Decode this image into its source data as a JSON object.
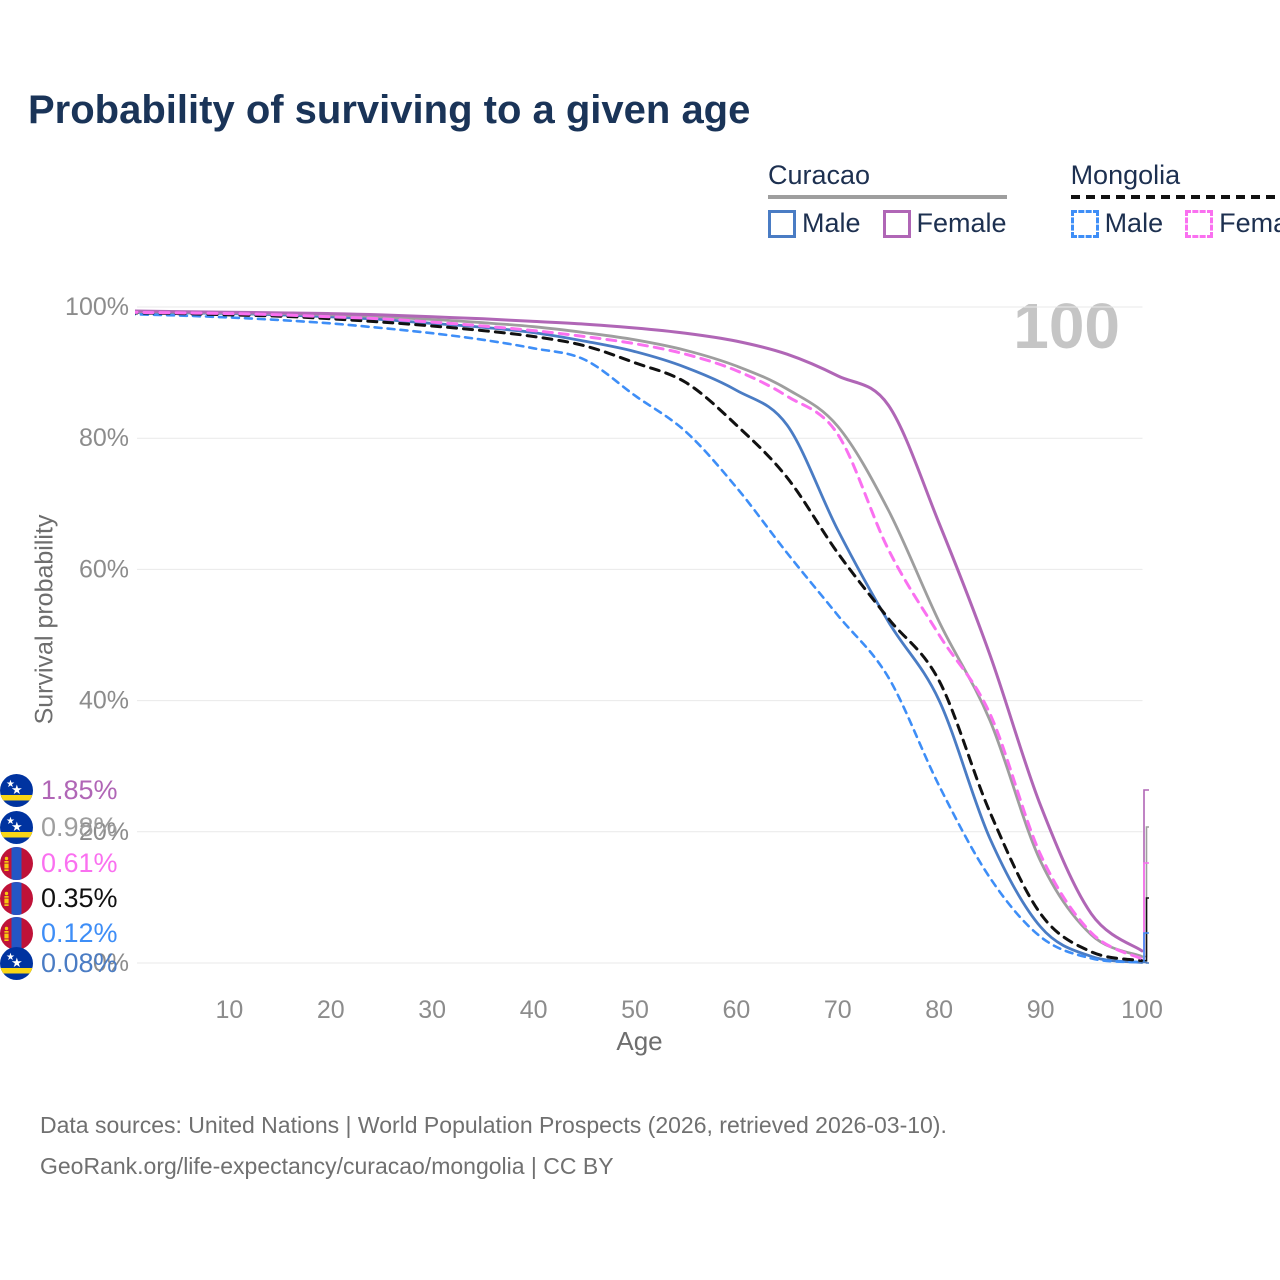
{
  "title": "Probability of surviving to a given age",
  "watermark_age": "100",
  "legend": {
    "groups": [
      {
        "label": "Curacao",
        "line_style": "solid",
        "underline_color": "#9e9e9e",
        "items": [
          {
            "label": "Male",
            "color": "#4a7cc4",
            "dashed": false
          },
          {
            "label": "Female",
            "color": "#b066b6",
            "dashed": false
          }
        ]
      },
      {
        "label": "Mongolia",
        "line_style": "dashed",
        "underline_color": "#111111",
        "items": [
          {
            "label": "Male",
            "color": "#3e8ef7",
            "dashed": true
          },
          {
            "label": "Female",
            "color": "#fa70f0",
            "dashed": true
          }
        ]
      }
    ]
  },
  "axes": {
    "x_label": "Age",
    "y_label": "Survival probability",
    "x_ticks": [
      "10",
      "20",
      "30",
      "40",
      "50",
      "60",
      "70",
      "80",
      "90",
      "100"
    ],
    "y_ticks": [
      "0%",
      "20%",
      "40%",
      "60%",
      "80%",
      "100%"
    ]
  },
  "chart_data": {
    "type": "line",
    "title": "Probability of surviving to a given age",
    "xlabel": "Age",
    "ylabel": "Survival probability",
    "xlim": [
      0,
      100
    ],
    "ylim": [
      0,
      100
    ],
    "grid": true,
    "legend_position": "top-right",
    "x": [
      0,
      5,
      10,
      15,
      20,
      25,
      30,
      35,
      40,
      45,
      50,
      55,
      60,
      65,
      70,
      75,
      80,
      85,
      90,
      95,
      100
    ],
    "series": [
      {
        "name": "Curacao Male",
        "country": "Curacao",
        "sex": "Male",
        "color": "#4a7cc4",
        "dash": null,
        "width": 2.8,
        "values": [
          99.2,
          99.1,
          99.0,
          98.8,
          98.5,
          98.1,
          97.5,
          96.9,
          96.1,
          94.8,
          93.2,
          90.8,
          87.3,
          82.0,
          66.0,
          52.0,
          40.0,
          19.0,
          5.5,
          1.0,
          0.08
        ]
      },
      {
        "name": "Curacao",
        "country": "Curacao",
        "sex": "Both",
        "color": "#9e9e9e",
        "dash": null,
        "width": 2.8,
        "values": [
          99.3,
          99.2,
          99.1,
          99.0,
          98.8,
          98.5,
          98.1,
          97.6,
          97.0,
          96.1,
          95.0,
          93.4,
          91.0,
          87.5,
          81.8,
          69.0,
          52.0,
          37.0,
          15.5,
          4.3,
          0.98
        ]
      },
      {
        "name": "Curacao Female",
        "country": "Curacao",
        "sex": "Female",
        "color": "#b066b6",
        "dash": null,
        "width": 3,
        "values": [
          99.4,
          99.3,
          99.2,
          99.1,
          99.0,
          98.8,
          98.5,
          98.2,
          97.8,
          97.4,
          96.8,
          96.0,
          94.8,
          92.8,
          89.5,
          85.0,
          67.0,
          47.0,
          24.0,
          7.5,
          1.85
        ]
      },
      {
        "name": "Mongolia Male",
        "country": "Mongolia",
        "sex": "Male",
        "color": "#3e8ef7",
        "dash": "7 6",
        "width": 2.6,
        "values": [
          98.9,
          98.7,
          98.4,
          98.0,
          97.5,
          96.8,
          96.0,
          95.0,
          93.7,
          92.0,
          86.5,
          81.0,
          72.5,
          62.5,
          53.0,
          43.5,
          27.0,
          13.0,
          4.0,
          0.7,
          0.12
        ]
      },
      {
        "name": "Mongolia",
        "country": "Mongolia",
        "sex": "Both",
        "color": "#111111",
        "dash": "9 7",
        "width": 3,
        "values": [
          99.1,
          99.0,
          98.8,
          98.6,
          98.2,
          97.7,
          97.1,
          96.4,
          95.5,
          94.1,
          91.5,
          88.5,
          82.0,
          74.0,
          62.5,
          52.5,
          43.0,
          23.0,
          7.5,
          1.7,
          0.35
        ]
      },
      {
        "name": "Mongolia Female",
        "country": "Mongolia",
        "sex": "Female",
        "color": "#fa70f0",
        "dash": "9 7",
        "width": 3,
        "values": [
          99.2,
          99.1,
          99.0,
          98.8,
          98.5,
          98.2,
          97.7,
          97.1,
          96.4,
          95.5,
          94.4,
          92.8,
          90.3,
          86.4,
          80.6,
          63.0,
          50.0,
          38.0,
          16.5,
          4.6,
          0.61
        ]
      }
    ],
    "end_labels": [
      {
        "value": "1.85%",
        "series": "Curacao Female",
        "flag": "curacao",
        "color": "#b066b6"
      },
      {
        "value": "0.98%",
        "series": "Curacao",
        "flag": "curacao",
        "color": "#9e9e9e"
      },
      {
        "value": "0.61%",
        "series": "Mongolia Female",
        "flag": "mongolia",
        "color": "#fa70f0"
      },
      {
        "value": "0.35%",
        "series": "Mongolia",
        "flag": "mongolia",
        "color": "#111111"
      },
      {
        "value": "0.12%",
        "series": "Mongolia Male",
        "flag": "mongolia",
        "color": "#3e8ef7"
      },
      {
        "value": "0.08%",
        "series": "Curacao Male",
        "flag": "curacao",
        "color": "#4a7cc4"
      }
    ]
  },
  "footer": {
    "line1": "Data sources: United Nations | World Population Prospects (2026, retrieved 2026-03-10).",
    "line2": "GeoRank.org/life-expectancy/curacao/mongolia | CC BY"
  },
  "colors": {
    "title_text": "#1a3458",
    "legend_text": "#1d3050",
    "gridline": "#e9e9e9",
    "tick_text": "#8c8c8c",
    "axis_title_text": "#6e6e6e",
    "footer_text": "#707070",
    "watermark": "#c5c5c5"
  }
}
